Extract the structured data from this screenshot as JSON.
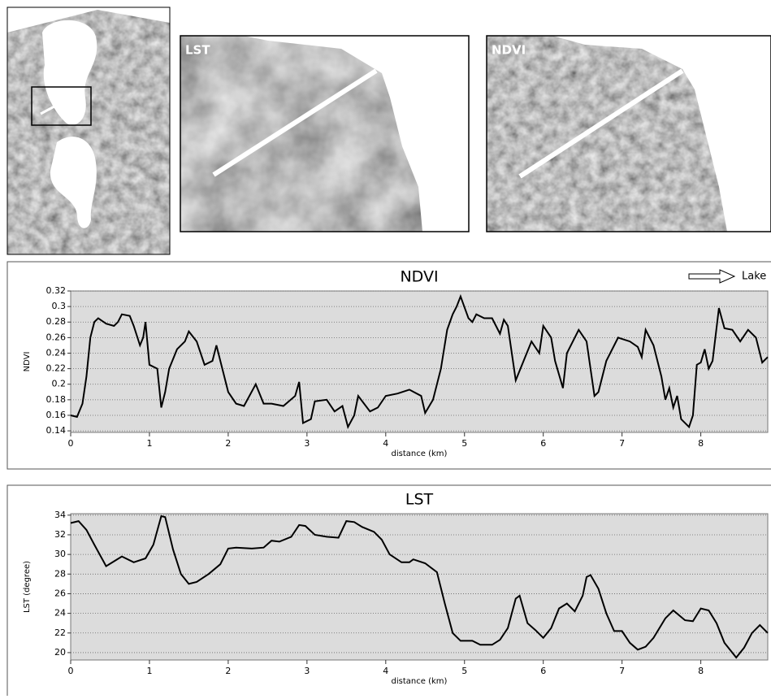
{
  "images": [
    {
      "label": "LST"
    },
    {
      "label": "NDVI"
    }
  ],
  "chart_data": [
    {
      "type": "line",
      "title": "NDVI",
      "ylabel": "NDVI",
      "xlabel": "distance (km)",
      "annotation": "Lake",
      "color": "#000000",
      "grid": true,
      "xlim": [
        0,
        8.85
      ],
      "ylim": [
        0.138,
        0.32
      ],
      "xticks": [
        0,
        1,
        2,
        3,
        4,
        5,
        6,
        7,
        8
      ],
      "yticks": [
        0.14,
        0.16,
        0.18,
        0.2,
        0.22,
        0.24,
        0.26,
        0.28,
        0.3,
        0.32
      ],
      "x": [
        0,
        0.08,
        0.15,
        0.2,
        0.25,
        0.3,
        0.35,
        0.45,
        0.55,
        0.6,
        0.65,
        0.75,
        0.8,
        0.88,
        0.92,
        0.95,
        1.0,
        1.1,
        1.15,
        1.2,
        1.25,
        1.35,
        1.45,
        1.5,
        1.6,
        1.7,
        1.8,
        1.85,
        1.9,
        2.0,
        2.1,
        2.2,
        2.35,
        2.45,
        2.55,
        2.7,
        2.85,
        2.9,
        2.95,
        3.05,
        3.1,
        3.25,
        3.35,
        3.45,
        3.52,
        3.6,
        3.65,
        3.8,
        3.9,
        4.0,
        4.15,
        4.3,
        4.45,
        4.5,
        4.6,
        4.7,
        4.78,
        4.85,
        4.9,
        4.95,
        5.05,
        5.1,
        5.15,
        5.25,
        5.35,
        5.45,
        5.5,
        5.55,
        5.65,
        5.75,
        5.85,
        5.95,
        6.0,
        6.1,
        6.15,
        6.25,
        6.3,
        6.45,
        6.55,
        6.65,
        6.7,
        6.8,
        6.95,
        7.1,
        7.2,
        7.25,
        7.3,
        7.4,
        7.5,
        7.55,
        7.6,
        7.65,
        7.7,
        7.75,
        7.85,
        7.9,
        7.95,
        8.0,
        8.05,
        8.1,
        8.15,
        8.23,
        8.3,
        8.4,
        8.5,
        8.6,
        8.7,
        8.78,
        8.85
      ],
      "values": [
        0.16,
        0.158,
        0.175,
        0.21,
        0.26,
        0.28,
        0.285,
        0.278,
        0.275,
        0.28,
        0.29,
        0.288,
        0.275,
        0.25,
        0.26,
        0.28,
        0.225,
        0.22,
        0.17,
        0.19,
        0.22,
        0.245,
        0.255,
        0.268,
        0.255,
        0.225,
        0.23,
        0.25,
        0.23,
        0.19,
        0.175,
        0.172,
        0.2,
        0.175,
        0.175,
        0.172,
        0.185,
        0.203,
        0.15,
        0.155,
        0.178,
        0.18,
        0.165,
        0.172,
        0.145,
        0.16,
        0.185,
        0.165,
        0.17,
        0.185,
        0.188,
        0.193,
        0.185,
        0.163,
        0.18,
        0.22,
        0.27,
        0.29,
        0.3,
        0.313,
        0.285,
        0.28,
        0.29,
        0.285,
        0.285,
        0.265,
        0.283,
        0.275,
        0.205,
        0.23,
        0.255,
        0.24,
        0.275,
        0.26,
        0.23,
        0.195,
        0.24,
        0.27,
        0.255,
        0.185,
        0.19,
        0.23,
        0.26,
        0.255,
        0.248,
        0.235,
        0.27,
        0.25,
        0.21,
        0.18,
        0.195,
        0.17,
        0.185,
        0.155,
        0.145,
        0.16,
        0.225,
        0.228,
        0.245,
        0.22,
        0.23,
        0.298,
        0.272,
        0.27,
        0.255,
        0.27,
        0.26,
        0.228,
        0.235
      ]
    },
    {
      "type": "line",
      "title": "LST",
      "ylabel": "LST (degree)",
      "xlabel": "distance (km)",
      "color": "#000000",
      "grid": true,
      "xlim": [
        0,
        8.85
      ],
      "ylim": [
        19.25,
        34.15
      ],
      "xticks": [
        0,
        1,
        2,
        3,
        4,
        5,
        6,
        7,
        8
      ],
      "yticks": [
        20,
        22,
        24,
        26,
        28,
        30,
        32,
        34
      ],
      "x": [
        0,
        0.1,
        0.2,
        0.3,
        0.45,
        0.55,
        0.65,
        0.8,
        0.95,
        1.05,
        1.15,
        1.2,
        1.3,
        1.4,
        1.5,
        1.6,
        1.75,
        1.9,
        2.0,
        2.1,
        2.3,
        2.45,
        2.55,
        2.65,
        2.8,
        2.9,
        2.98,
        3.1,
        3.25,
        3.4,
        3.5,
        3.6,
        3.7,
        3.85,
        3.95,
        4.05,
        4.2,
        4.3,
        4.35,
        4.5,
        4.65,
        4.75,
        4.85,
        4.95,
        5.1,
        5.2,
        5.35,
        5.45,
        5.55,
        5.65,
        5.7,
        5.8,
        5.9,
        6.0,
        6.1,
        6.2,
        6.3,
        6.4,
        6.5,
        6.55,
        6.6,
        6.7,
        6.8,
        6.9,
        7.0,
        7.1,
        7.2,
        7.3,
        7.4,
        7.55,
        7.65,
        7.8,
        7.9,
        8.0,
        8.1,
        8.2,
        8.3,
        8.45,
        8.55,
        8.65,
        8.75,
        8.85
      ],
      "values": [
        33.2,
        33.4,
        32.5,
        31,
        28.8,
        29.3,
        29.8,
        29.2,
        29.6,
        31,
        33.9,
        33.8,
        30.5,
        28,
        27,
        27.2,
        28,
        29,
        30.6,
        30.7,
        30.6,
        30.7,
        31.4,
        31.3,
        31.8,
        33,
        32.9,
        32,
        31.8,
        31.7,
        33.4,
        33.3,
        32.8,
        32.3,
        31.5,
        30,
        29.2,
        29.2,
        29.5,
        29.1,
        28.2,
        25,
        22,
        21.2,
        21.2,
        20.8,
        20.8,
        21.3,
        22.5,
        25.5,
        25.8,
        23,
        22.3,
        21.5,
        22.5,
        24.5,
        25,
        24.2,
        25.8,
        27.7,
        27.9,
        26.5,
        24,
        22.2,
        22.2,
        21,
        20.3,
        20.6,
        21.5,
        23.5,
        24.3,
        23.3,
        23.2,
        24.5,
        24.3,
        23,
        21,
        19.5,
        20.5,
        22,
        22.8,
        22
      ]
    }
  ]
}
